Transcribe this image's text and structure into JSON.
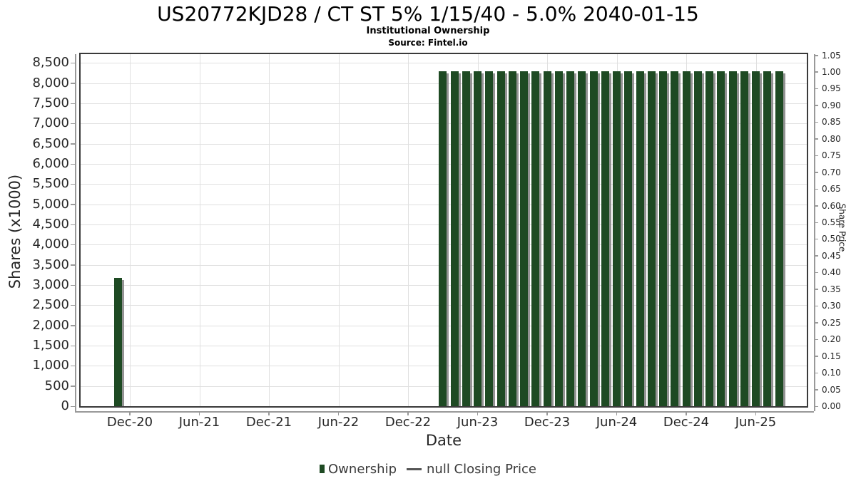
{
  "header": {
    "title": "US20772KJD28 / CT ST 5% 1/15/40 - 5.0% 2040-01-15",
    "subtitle": "Institutional Ownership",
    "source": "Source: Fintel.io"
  },
  "legend": {
    "items": [
      {
        "label": "Ownership",
        "marker": "bar-swatch",
        "color": "#1e4a23"
      },
      {
        "label": "null Closing Price",
        "marker": "dash",
        "color": "#555555"
      }
    ]
  },
  "colors": {
    "bar": "#1e4a23",
    "bar_shadow": "rgba(128,128,128,0.85)",
    "grid": "#e0e0e0",
    "plot_border": "#3a3a3a",
    "spine": "#999999",
    "tick_text": "#262626"
  },
  "chart_data": {
    "type": "bar",
    "title": "US20772KJD28 / CT ST 5% 1/15/40 - 5.0% 2040-01-15",
    "subtitle": "Institutional Ownership",
    "source": "Source: Fintel.io",
    "xlabel": "Date",
    "ylabel_left": "Shares (x1000)",
    "ylabel_right": "Share Price",
    "x_tick_labels": [
      "Dec-20",
      "Jun-21",
      "Dec-21",
      "Jun-22",
      "Dec-22",
      "Jun-23",
      "Dec-23",
      "Jun-24",
      "Dec-24",
      "Jun-25"
    ],
    "ylim_left": [
      0,
      8720
    ],
    "y_left_ticks": [
      0,
      500,
      1000,
      1500,
      2000,
      2500,
      3000,
      3500,
      4000,
      4500,
      5000,
      5500,
      6000,
      6500,
      7000,
      7500,
      8000,
      8500
    ],
    "ylim_right": [
      0,
      1.05
    ],
    "y_right_ticks": [
      0.0,
      0.05,
      0.1,
      0.15,
      0.2,
      0.25,
      0.3,
      0.35,
      0.4,
      0.45,
      0.5,
      0.55,
      0.6,
      0.65,
      0.7,
      0.75,
      0.8,
      0.85,
      0.9,
      0.95,
      1.0,
      1.05
    ],
    "grid": true,
    "legend_position": "bottom",
    "series": [
      {
        "name": "Ownership",
        "type": "bar",
        "color": "#1e4a23",
        "points": [
          {
            "x": "Nov-20",
            "y": 3180
          },
          {
            "x": "Mar-23",
            "y": 8300
          },
          {
            "x": "Apr-23",
            "y": 8300
          },
          {
            "x": "May-23",
            "y": 8300
          },
          {
            "x": "Jun-23",
            "y": 8300
          },
          {
            "x": "Jul-23",
            "y": 8300
          },
          {
            "x": "Aug-23",
            "y": 8300
          },
          {
            "x": "Sep-23",
            "y": 8300
          },
          {
            "x": "Oct-23",
            "y": 8300
          },
          {
            "x": "Nov-23",
            "y": 8300
          },
          {
            "x": "Dec-23",
            "y": 8300
          },
          {
            "x": "Jan-24",
            "y": 8300
          },
          {
            "x": "Feb-24",
            "y": 8300
          },
          {
            "x": "Mar-24",
            "y": 8300
          },
          {
            "x": "Apr-24",
            "y": 8300
          },
          {
            "x": "May-24",
            "y": 8300
          },
          {
            "x": "Jun-24",
            "y": 8300
          },
          {
            "x": "Jul-24",
            "y": 8300
          },
          {
            "x": "Aug-24",
            "y": 8300
          },
          {
            "x": "Sep-24",
            "y": 8300
          },
          {
            "x": "Oct-24",
            "y": 8300
          },
          {
            "x": "Nov-24",
            "y": 8300
          },
          {
            "x": "Dec-24",
            "y": 8300
          },
          {
            "x": "Jan-25",
            "y": 8300
          },
          {
            "x": "Feb-25",
            "y": 8300
          },
          {
            "x": "Mar-25",
            "y": 8300
          },
          {
            "x": "Apr-25",
            "y": 8300
          },
          {
            "x": "May-25",
            "y": 8300
          },
          {
            "x": "Jun-25",
            "y": 8300
          },
          {
            "x": "Jul-25",
            "y": 8300
          },
          {
            "x": "Aug-25",
            "y": 8300
          }
        ]
      },
      {
        "name": "null Closing Price",
        "type": "line",
        "color": "#555555",
        "points": []
      }
    ]
  }
}
